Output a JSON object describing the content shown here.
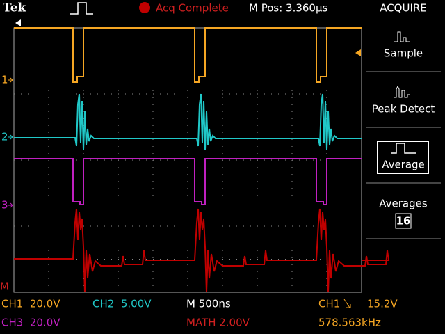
{
  "header": {
    "brand": "Tek",
    "status": "Acq Complete",
    "position": "M Pos: 3.360µs"
  },
  "menu": {
    "title": "ACQUIRE",
    "items": [
      "Sample",
      "Peak Detect",
      "Average"
    ],
    "averages_label": "Averages",
    "averages_value": "16"
  },
  "markers": {
    "ch1": "1",
    "ch2": "2",
    "ch3": "3",
    "math": "M"
  },
  "footer": {
    "ch1_scale": "CH1  20.0V",
    "ch2_scale": "CH2  5.00V",
    "timebase": "M 500ns",
    "trigger_source": "CH1",
    "trigger_level": "15.2V",
    "ch3_scale": "CH3  20.0V",
    "math_scale": "MATH 2.00V",
    "frequency": "578.563kHz"
  }
}
